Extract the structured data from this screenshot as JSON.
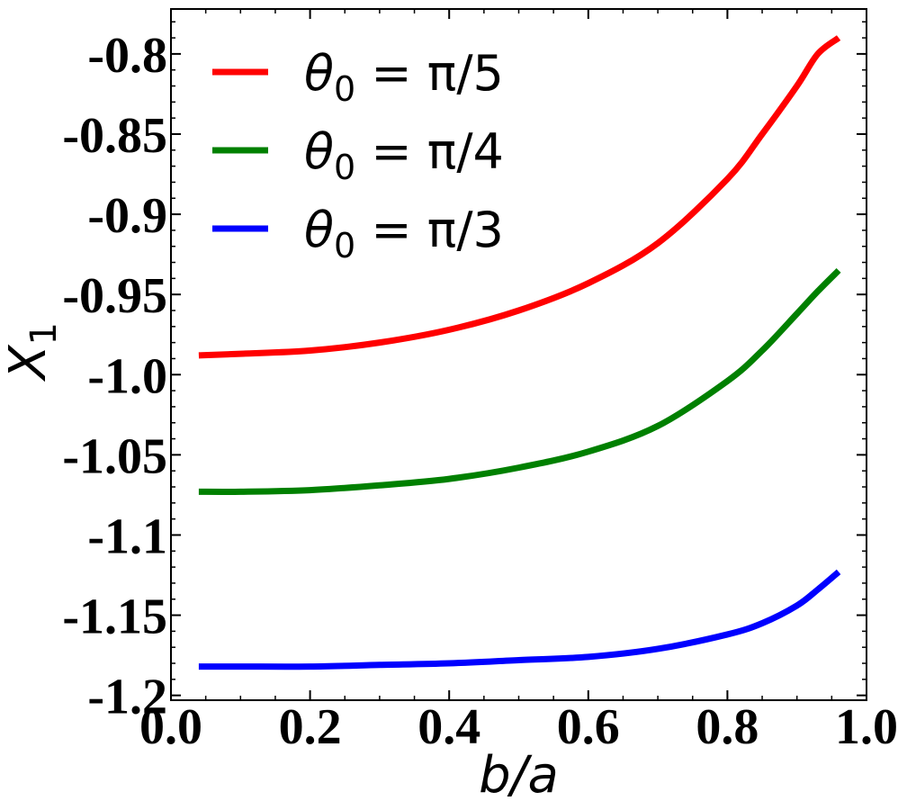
{
  "chart_data": {
    "type": "line",
    "xlabel": "b/a",
    "ylabel": "X",
    "ylabel_sub": "1",
    "xlim": [
      0.0,
      1.0
    ],
    "ylim": [
      -1.203,
      -0.772
    ],
    "xticks": [
      0.0,
      0.2,
      0.4,
      0.6,
      0.8,
      1.0
    ],
    "xtick_labels": [
      "0.0",
      "0.2",
      "0.4",
      "0.6",
      "0.8",
      "1.0"
    ],
    "yticks": [
      -0.8,
      -0.85,
      -0.9,
      -0.95,
      -1.0,
      -1.05,
      -1.1,
      -1.15,
      -1.2
    ],
    "ytick_labels": [
      "-0.8",
      "-0.85",
      "-0.9",
      "-0.95",
      "-1.0",
      "-1.05",
      "-1.1",
      "-1.15",
      "-1.2"
    ],
    "grid": false,
    "legend_position": "top-left",
    "x": [
      0.04,
      0.1,
      0.2,
      0.3,
      0.4,
      0.5,
      0.6,
      0.7,
      0.8,
      0.85,
      0.9,
      0.93,
      0.96
    ],
    "series": [
      {
        "name_prefix": "θ",
        "name_sub": "0",
        "name_suffix": " = π/5",
        "color": "#ff0000",
        "values": [
          -0.988,
          -0.987,
          -0.985,
          -0.98,
          -0.972,
          -0.96,
          -0.943,
          -0.918,
          -0.878,
          -0.85,
          -0.82,
          -0.8,
          -0.79
        ]
      },
      {
        "name_prefix": "θ",
        "name_sub": "0",
        "name_suffix": " = π/4",
        "color": "#008000",
        "values": [
          -1.073,
          -1.073,
          -1.072,
          -1.069,
          -1.065,
          -1.058,
          -1.048,
          -1.032,
          -1.004,
          -0.985,
          -0.962,
          -0.948,
          -0.935
        ]
      },
      {
        "name_prefix": "θ",
        "name_sub": "0",
        "name_suffix": " = π/3",
        "color": "#0000ff",
        "values": [
          -1.182,
          -1.182,
          -1.182,
          -1.181,
          -1.18,
          -1.178,
          -1.176,
          -1.171,
          -1.162,
          -1.155,
          -1.144,
          -1.134,
          -1.123
        ]
      }
    ]
  }
}
